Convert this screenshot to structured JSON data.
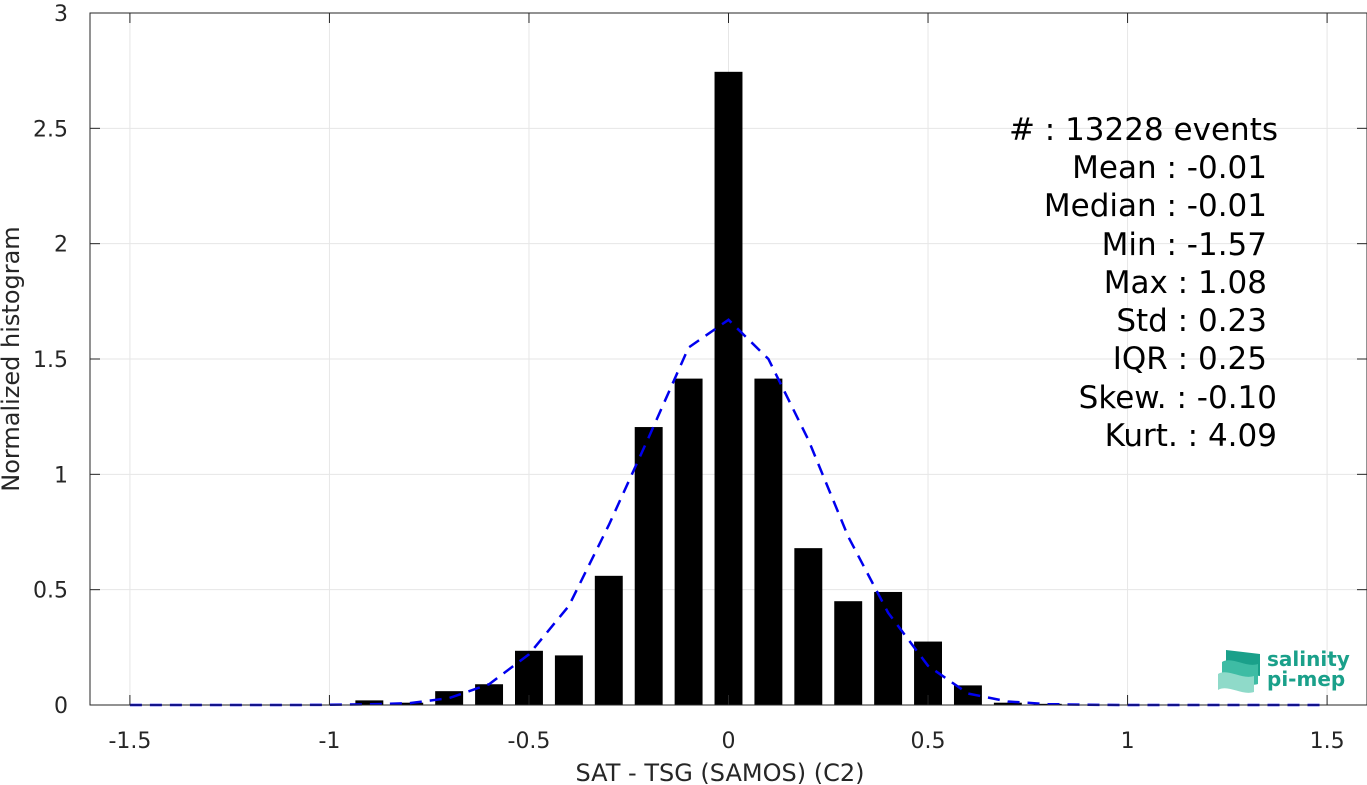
{
  "chart_data": {
    "type": "bar",
    "xlabel": "SAT - TSG (SAMOS) (C2)",
    "ylabel": "Normalized histogram",
    "xlim": [
      -1.6,
      1.6
    ],
    "ylim": [
      0,
      3
    ],
    "grid": true,
    "x_ticks": [
      -1.5,
      -1,
      -0.5,
      0,
      0.5,
      1,
      1.5
    ],
    "x_tick_labels": [
      "-1.5",
      "-1",
      "-0.5",
      "0",
      "0.5",
      "1",
      "1.5"
    ],
    "y_ticks": [
      0,
      0.5,
      1,
      1.5,
      2,
      2.5,
      3
    ],
    "y_tick_labels": [
      "0",
      "0.5",
      "1",
      "1.5",
      "2",
      "2.5",
      "3"
    ],
    "bin_width": 0.1,
    "bars": {
      "x": [
        -1.5,
        -1.4,
        -1.3,
        -1.2,
        -1.1,
        -1.0,
        -0.9,
        -0.8,
        -0.7,
        -0.6,
        -0.5,
        -0.4,
        -0.3,
        -0.2,
        -0.1,
        0.0,
        0.1,
        0.2,
        0.3,
        0.4,
        0.5,
        0.6,
        0.7,
        0.8,
        0.9,
        1.0
      ],
      "values": [
        0.002,
        0,
        0,
        0,
        0,
        0,
        0.02,
        0.01,
        0.06,
        0.09,
        0.235,
        0.215,
        0.56,
        1.205,
        1.415,
        2.745,
        1.415,
        0.68,
        0.45,
        0.49,
        0.275,
        0.085,
        0.01,
        0.005,
        0.002,
        0.002
      ]
    },
    "fit_curve": {
      "name": "",
      "style": "dashed",
      "color": "#0000ee",
      "x": [
        -1.5,
        -1.4,
        -1.3,
        -1.2,
        -1.1,
        -1.0,
        -0.9,
        -0.8,
        -0.7,
        -0.6,
        -0.5,
        -0.4,
        -0.3,
        -0.2,
        -0.1,
        0.0,
        0.1,
        0.2,
        0.3,
        0.4,
        0.5,
        0.6,
        0.7,
        0.8,
        0.9,
        1.0,
        1.1,
        1.2,
        1.3,
        1.4,
        1.5
      ],
      "y": [
        0,
        0,
        0,
        0,
        0,
        0.001,
        0.003,
        0.008,
        0.03,
        0.09,
        0.22,
        0.43,
        0.78,
        1.16,
        1.55,
        1.67,
        1.5,
        1.15,
        0.73,
        0.4,
        0.17,
        0.05,
        0.015,
        0.004,
        0.001,
        0,
        0,
        0,
        0,
        0,
        0
      ]
    },
    "annotations": [
      "#  : 13228 events",
      "Mean : -0.01",
      "Median : -0.01",
      "Min : -1.57",
      "Max : 1.08",
      "Std : 0.23",
      "IQR : 0.25",
      "Skew. : -0.10",
      "Kurt. : 4.09"
    ]
  },
  "logo": {
    "line1": "salinity",
    "line2": "pi-mep",
    "color": "#1aa08a"
  }
}
